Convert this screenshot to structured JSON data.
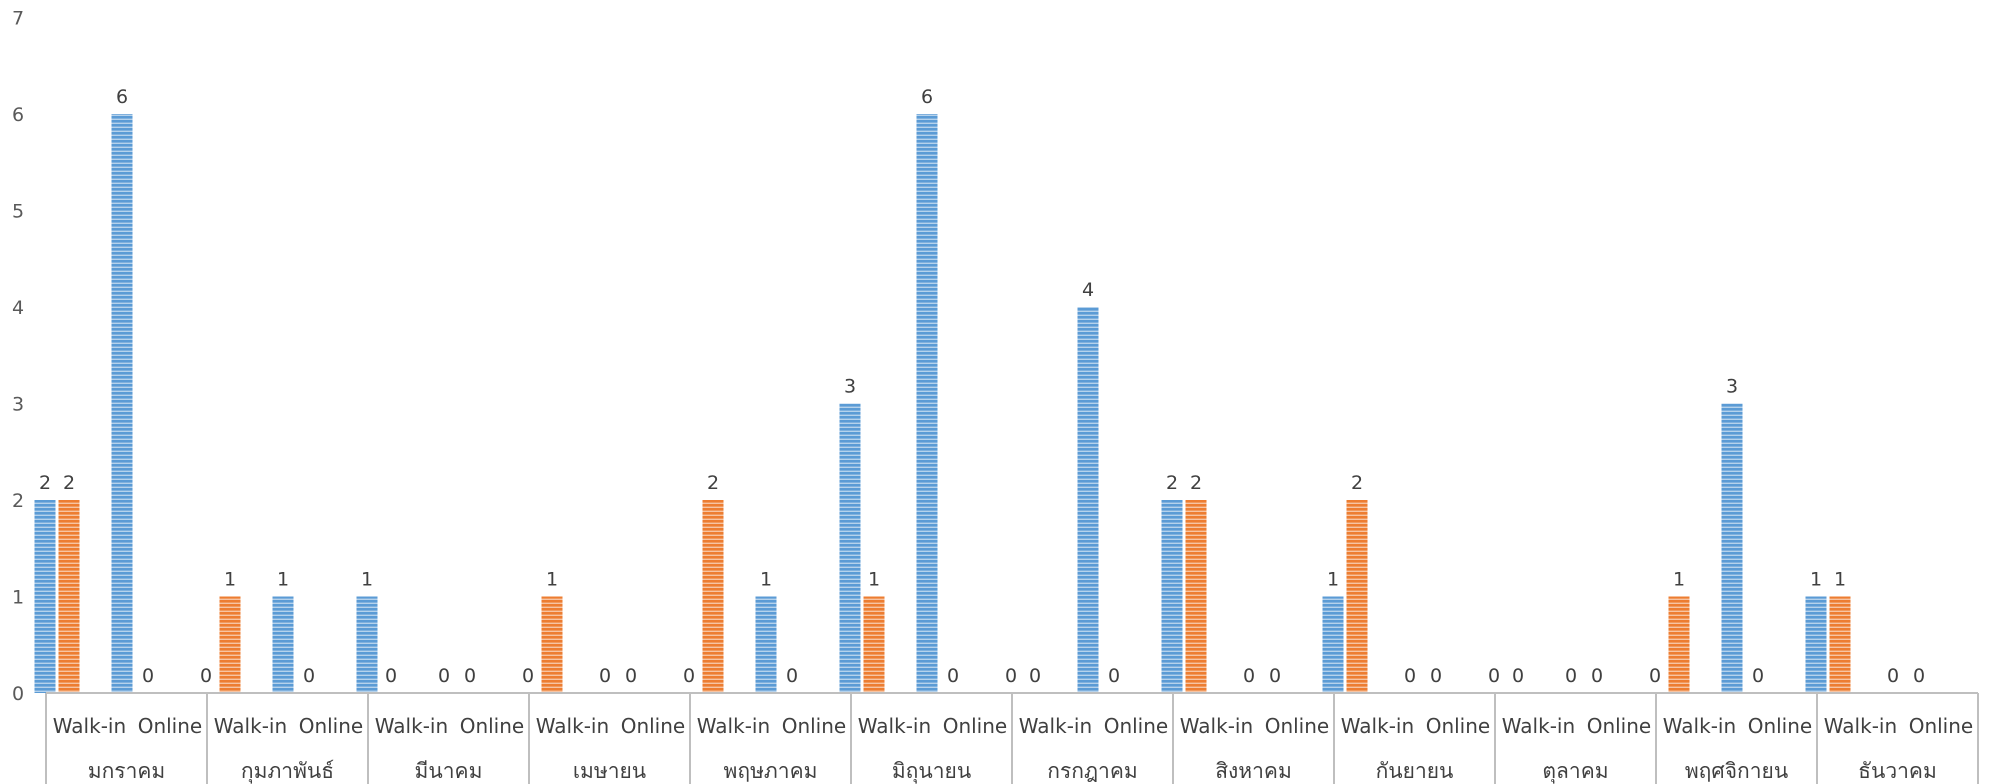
{
  "chart_data": {
    "type": "bar",
    "title": "",
    "xlabel": "",
    "ylabel": "",
    "ylim": [
      0,
      7
    ],
    "yticks": [
      0,
      1,
      2,
      3,
      4,
      5,
      6,
      7
    ],
    "grid": false,
    "legend": "none",
    "colors": {
      "blue": "#5b9bd5",
      "orange": "#ed7d31",
      "blue_stripe": "#ffffff",
      "orange_stripe": "#ffffff"
    },
    "subcategories": [
      "Walk-in",
      "Online"
    ],
    "months": [
      {
        "label": "มกราคม",
        "values": [
          2,
          2,
          6,
          0
        ]
      },
      {
        "label": "กุมภาพันธ์",
        "values": [
          0,
          1,
          1,
          0
        ]
      },
      {
        "label": "มีนาคม",
        "values": [
          1,
          0,
          0,
          0
        ]
      },
      {
        "label": "เมษายน",
        "values": [
          0,
          1,
          0,
          0
        ]
      },
      {
        "label": "พฤษภาคม",
        "values": [
          0,
          2,
          1,
          0
        ]
      },
      {
        "label": "มิถุนายน",
        "values": [
          3,
          1,
          6,
          0
        ]
      },
      {
        "label": "กรกฎาคม",
        "values": [
          0,
          0,
          4,
          0
        ]
      },
      {
        "label": "สิงหาคม",
        "values": [
          2,
          2,
          0,
          0
        ]
      },
      {
        "label": "กันยายน",
        "values": [
          1,
          2,
          0,
          0
        ]
      },
      {
        "label": "ตุลาคม",
        "values": [
          0,
          0,
          0,
          0
        ]
      },
      {
        "label": "พฤศจิกายน",
        "values": [
          0,
          1,
          3,
          0
        ]
      },
      {
        "label": "ธันวาคม",
        "values": [
          1,
          1,
          0,
          0
        ]
      }
    ]
  }
}
